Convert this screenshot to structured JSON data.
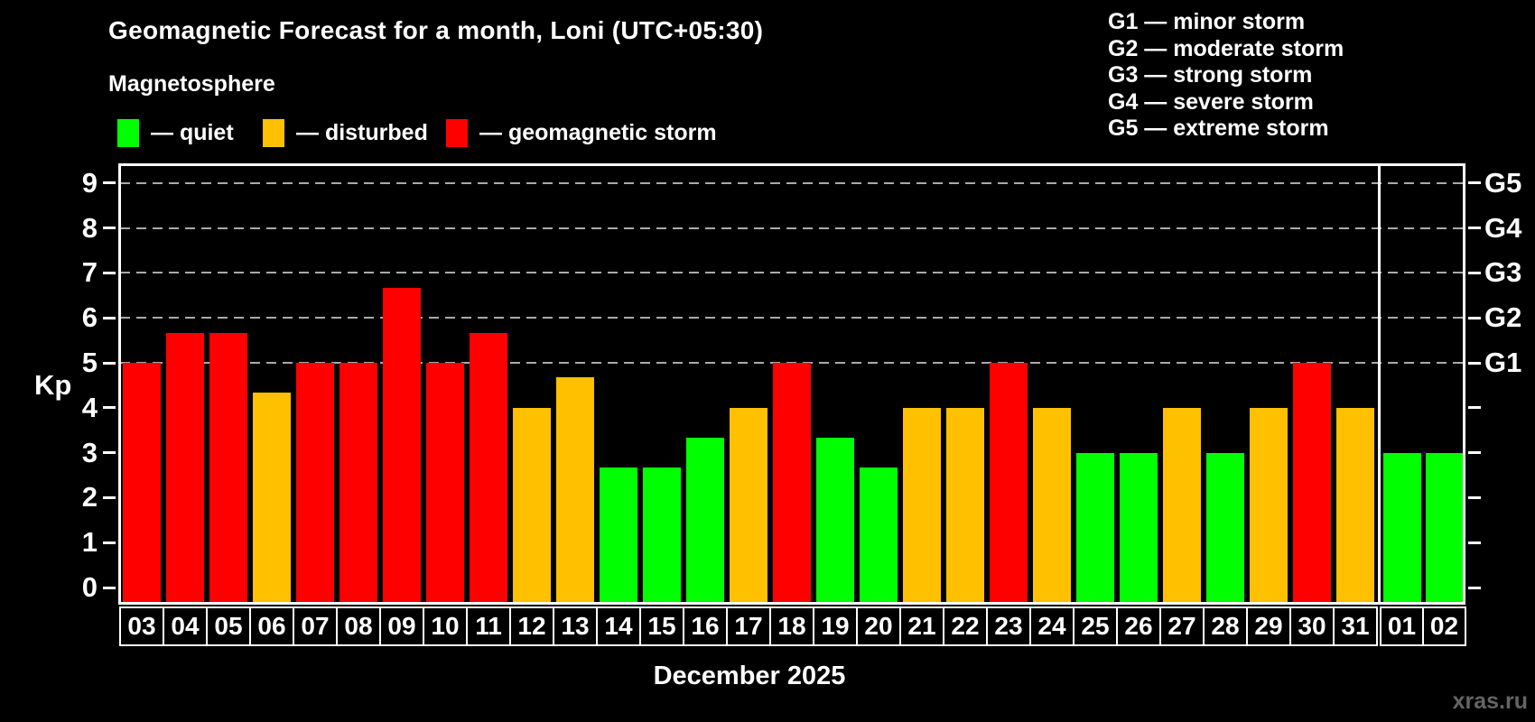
{
  "title": "Geomagnetic Forecast for a month, Loni (UTC+05:30)",
  "subtitle": "Magnetosphere",
  "legend": {
    "items": [
      {
        "status": "quiet",
        "label": "— quiet"
      },
      {
        "status": "disturbed",
        "label": "— disturbed"
      },
      {
        "status": "storm",
        "label": "— geomagnetic storm"
      }
    ]
  },
  "g_legend": [
    "G1 — minor storm",
    "G2 — moderate storm",
    "G3 — strong storm",
    "G4 — severe storm",
    "G5 — extreme storm"
  ],
  "axis": {
    "kp_label": "Kp",
    "left_ticks": [
      "0",
      "1",
      "2",
      "3",
      "4",
      "5",
      "6",
      "7",
      "8",
      "9"
    ],
    "right_labels": [
      {
        "label": "G1",
        "level": 5
      },
      {
        "label": "G2",
        "level": 6
      },
      {
        "label": "G3",
        "level": 7
      },
      {
        "label": "G4",
        "level": 8
      },
      {
        "label": "G5",
        "level": 9
      }
    ]
  },
  "footer": {
    "month_label": "December 2025",
    "watermark": "xras.ru"
  },
  "colors": {
    "quiet": "#00ff00",
    "disturbed": "#ffc000",
    "storm": "#ff0000",
    "grid": "#aaaaaa",
    "frame": "#ffffff",
    "text": "#ffffff",
    "watermark": "#646464"
  },
  "chart_data": {
    "type": "bar",
    "title": "Geomagnetic Forecast for a month, Loni (UTC+05:30)",
    "xlabel": "December 2025",
    "ylabel": "Kp",
    "ylim": [
      0,
      9
    ],
    "grid": "dashed horizontal lines at Kp 5,6,7,8,9 (G1–G5 storm levels)",
    "legend_position": "top",
    "categories": [
      "03",
      "04",
      "05",
      "06",
      "07",
      "08",
      "09",
      "10",
      "11",
      "12",
      "13",
      "14",
      "15",
      "16",
      "17",
      "18",
      "19",
      "20",
      "21",
      "22",
      "23",
      "24",
      "25",
      "26",
      "27",
      "28",
      "29",
      "30",
      "31",
      "01",
      "02"
    ],
    "values": [
      5,
      5.67,
      5.67,
      4.33,
      5,
      5,
      6.67,
      5,
      5.67,
      4,
      4.67,
      2.67,
      2.67,
      3.33,
      4,
      5,
      3.33,
      2.67,
      4,
      4,
      5,
      4,
      3,
      3,
      4,
      3,
      4,
      5,
      4,
      3,
      3
    ],
    "statuses": [
      "storm",
      "storm",
      "storm",
      "disturbed",
      "storm",
      "storm",
      "storm",
      "storm",
      "storm",
      "disturbed",
      "disturbed",
      "quiet",
      "quiet",
      "quiet",
      "disturbed",
      "storm",
      "quiet",
      "quiet",
      "disturbed",
      "disturbed",
      "storm",
      "disturbed",
      "quiet",
      "quiet",
      "disturbed",
      "quiet",
      "disturbed",
      "storm",
      "disturbed",
      "quiet",
      "quiet"
    ],
    "december_day_count": 29,
    "g_levels": [
      5,
      6,
      7,
      8,
      9
    ]
  }
}
